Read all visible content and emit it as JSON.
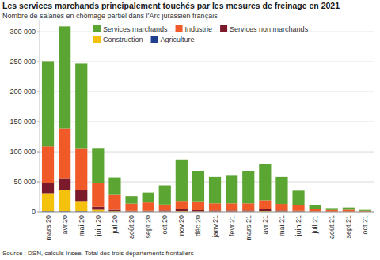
{
  "chart_data": {
    "type": "bar",
    "title": "Les services marchands principalement touchés par les mesures de freinage en 2021",
    "subtitle": "Nombre de salariés en chômage partiel dans l’Arc jurassien français",
    "source": "Source : DSN, calculs Insee. Total des trois départements frontaliers",
    "categories": [
      "mars.20",
      "avr.20",
      "mai.20",
      "juin.20",
      "juil.20",
      "août.20",
      "sept.20",
      "oct.20",
      "nov.20",
      "déc.20",
      "janv.21",
      "févr.21",
      "mars.21",
      "avr.21",
      "mai.21",
      "juin.21",
      "juil.21",
      "août.21",
      "sept.21",
      "oct.21"
    ],
    "series": [
      {
        "name": "Services marchands",
        "color": "#5ba532",
        "values": [
          142000,
          170000,
          141000,
          58000,
          29000,
          12500,
          16500,
          32000,
          69000,
          50500,
          44000,
          46000,
          54000,
          61000,
          45000,
          24500,
          6500,
          3200,
          3700,
          1600
        ]
      },
      {
        "name": "Industrie",
        "color": "#f05a28",
        "values": [
          61000,
          83000,
          70000,
          40000,
          25000,
          12000,
          14000,
          10000,
          14000,
          15000,
          12000,
          12000,
          12000,
          14000,
          11000,
          9000,
          4000,
          2500,
          3000,
          1200
        ]
      },
      {
        "name": "Services non marchands",
        "color": "#7a1a2a",
        "values": [
          17000,
          20000,
          18000,
          5000,
          2000,
          1000,
          1000,
          1500,
          3000,
          2000,
          1500,
          1500,
          1500,
          4000,
          1500,
          1000,
          300,
          200,
          200,
          100
        ]
      },
      {
        "name": "Construction",
        "color": "#f4c20d",
        "values": [
          30000,
          35000,
          17000,
          3000,
          1000,
          500,
          500,
          500,
          1000,
          500,
          500,
          500,
          500,
          1000,
          500,
          500,
          200,
          100,
          100,
          100
        ]
      },
      {
        "name": "Agriculture",
        "color": "#1f3f8f",
        "values": [
          1000,
          1000,
          1000,
          300,
          200,
          100,
          100,
          100,
          200,
          100,
          100,
          100,
          100,
          200,
          100,
          100,
          50,
          50,
          50,
          50
        ]
      }
    ],
    "ylim": [
      0,
      320000
    ],
    "yticks": [
      0,
      {
        "value": 50000,
        "label": "50 000"
      },
      {
        "value": 100000,
        "label": "100 000"
      },
      {
        "value": 150000,
        "label": "150 000"
      },
      {
        "value": 200000,
        "label": "200 000"
      },
      {
        "value": 250000,
        "label": "250 000"
      },
      {
        "value": 300000,
        "label": "300 000"
      }
    ],
    "stacked": true,
    "grid": true,
    "legend": "top"
  }
}
